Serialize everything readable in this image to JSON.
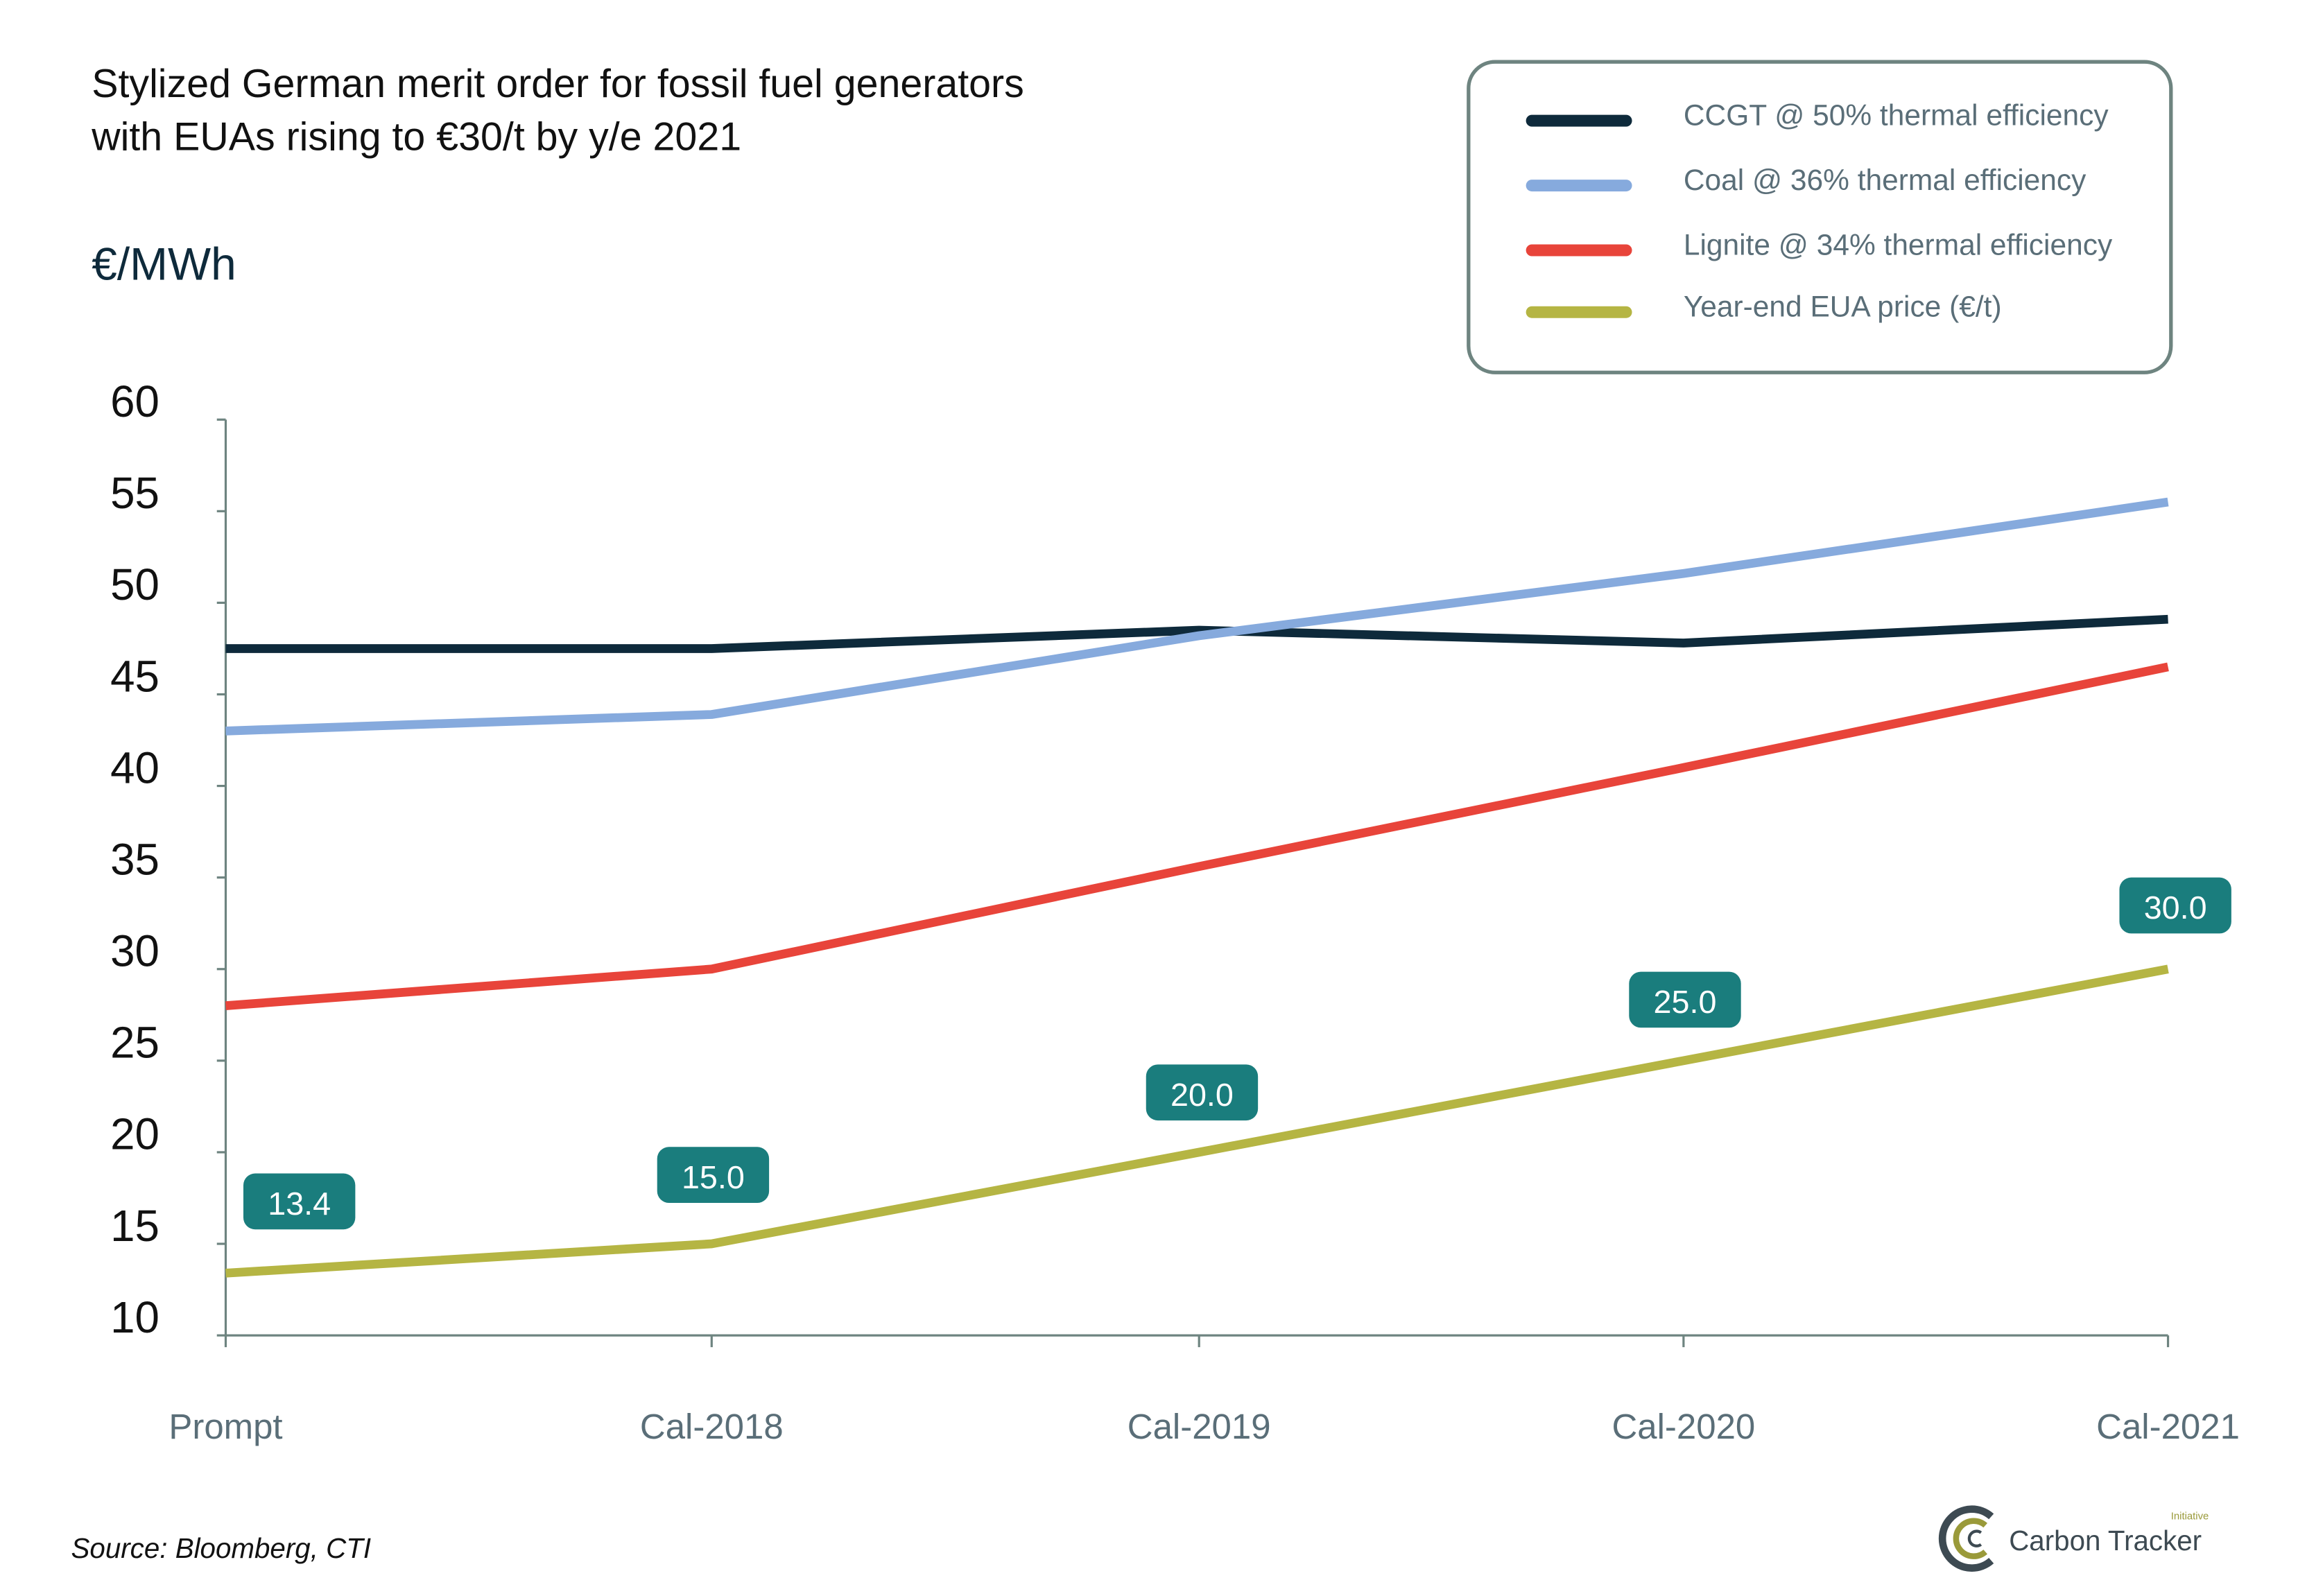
{
  "chart_data": {
    "type": "line",
    "title": "Stylized German merit order for fossil fuel generators",
    "subtitle": "with EUAs rising to €30/t by y/e 2021",
    "ylabel": "€/MWh",
    "xlabel": "",
    "categories": [
      "Prompt",
      "Cal-2018",
      "Cal-2019",
      "Cal-2020",
      "Cal-2021"
    ],
    "ylim": [
      10,
      60
    ],
    "yticks": [
      "60",
      "55",
      "50",
      "45",
      "40",
      "35",
      "30",
      "25",
      "20",
      "15",
      "10"
    ],
    "grid": false,
    "legend_position": "top-right",
    "series": [
      {
        "name": "CCGT @ 50% thermal efficiency",
        "color": "#0e2a3b",
        "values": [
          47.5,
          47.5,
          48.5,
          47.8,
          49.1
        ]
      },
      {
        "name": "Coal @ 36% thermal efficiency",
        "color": "#86aadd",
        "values": [
          43.0,
          43.9,
          48.2,
          51.6,
          55.5
        ]
      },
      {
        "name": "Lignite @ 34% thermal efficiency",
        "color": "#e8443a",
        "values": [
          28.0,
          30.0,
          35.6,
          41.0,
          46.5
        ]
      },
      {
        "name": "Year-end EUA price (€/t)",
        "color": "#b5b543",
        "values": [
          13.4,
          15.0,
          20.0,
          25.0,
          30.0
        ],
        "data_labels": [
          "13.4",
          "15.0",
          "20.0",
          "25.0",
          "30.0"
        ]
      }
    ],
    "data_label_color": "#1a7d7d"
  },
  "footer": {
    "source": "Source: Bloomberg, CTI",
    "logo_text": "Carbon Tracker",
    "logo_subtext": "Initiative"
  }
}
